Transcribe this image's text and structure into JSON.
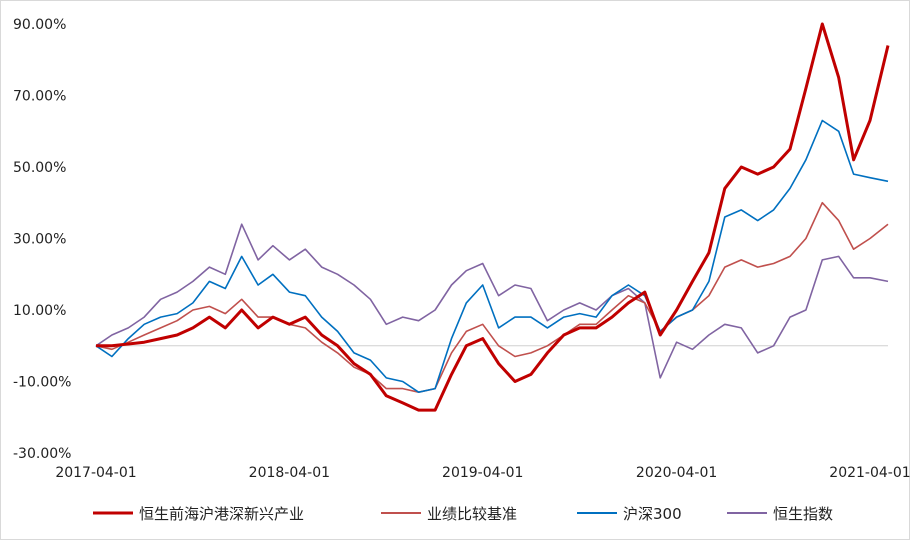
{
  "chart_data": {
    "type": "line",
    "title": "",
    "xlabel": "",
    "ylabel": "",
    "ylim": [
      -30,
      90
    ],
    "y_ticks": [
      "90.00%",
      "70.00%",
      "50.00%",
      "30.00%",
      "10.00%",
      "-10.00%",
      "-30.00%"
    ],
    "y_tick_values": [
      90,
      70,
      50,
      30,
      10,
      -10,
      -30
    ],
    "x_range": [
      "2017-04-01",
      "2021-05-05"
    ],
    "x_ticks": [
      "2017-04-01",
      "2018-04-01",
      "2019-04-01",
      "2020-04-01",
      "2021-04-01"
    ],
    "grid": false,
    "zero_line": true,
    "legend_position": "bottom",
    "series": [
      {
        "name": "恒生前海沪港深新兴产业",
        "color": "#c00000",
        "values": [
          [
            "2017-04-01",
            0
          ],
          [
            "2017-05-01",
            0
          ],
          [
            "2017-06-01",
            0.5
          ],
          [
            "2017-07-01",
            1
          ],
          [
            "2017-08-01",
            2
          ],
          [
            "2017-09-01",
            3
          ],
          [
            "2017-10-01",
            5
          ],
          [
            "2017-11-01",
            8
          ],
          [
            "2017-12-01",
            5
          ],
          [
            "2018-01-01",
            10
          ],
          [
            "2018-02-01",
            5
          ],
          [
            "2018-03-01",
            8
          ],
          [
            "2018-04-01",
            6
          ],
          [
            "2018-05-01",
            8
          ],
          [
            "2018-06-01",
            3
          ],
          [
            "2018-07-01",
            0
          ],
          [
            "2018-08-01",
            -5
          ],
          [
            "2018-09-01",
            -8
          ],
          [
            "2018-10-01",
            -14
          ],
          [
            "2018-11-01",
            -16
          ],
          [
            "2018-12-01",
            -18
          ],
          [
            "2019-01-01",
            -18
          ],
          [
            "2019-02-01",
            -8
          ],
          [
            "2019-03-01",
            0
          ],
          [
            "2019-04-01",
            2
          ],
          [
            "2019-05-01",
            -5
          ],
          [
            "2019-06-01",
            -10
          ],
          [
            "2019-07-01",
            -8
          ],
          [
            "2019-08-01",
            -2
          ],
          [
            "2019-09-01",
            3
          ],
          [
            "2019-10-01",
            5
          ],
          [
            "2019-11-01",
            5
          ],
          [
            "2019-12-01",
            8
          ],
          [
            "2020-01-01",
            12
          ],
          [
            "2020-02-01",
            15
          ],
          [
            "2020-03-01",
            3
          ],
          [
            "2020-04-01",
            10
          ],
          [
            "2020-05-01",
            18
          ],
          [
            "2020-06-01",
            26
          ],
          [
            "2020-07-01",
            44
          ],
          [
            "2020-08-01",
            50
          ],
          [
            "2020-09-01",
            48
          ],
          [
            "2020-10-01",
            50
          ],
          [
            "2020-11-01",
            55
          ],
          [
            "2020-12-01",
            72
          ],
          [
            "2021-01-01",
            90
          ],
          [
            "2021-02-01",
            75
          ],
          [
            "2021-03-01",
            52
          ],
          [
            "2021-04-01",
            63
          ],
          [
            "2021-05-05",
            84
          ]
        ]
      },
      {
        "name": "业绩比较基准",
        "color": "#c0504d",
        "values": [
          [
            "2017-04-01",
            0
          ],
          [
            "2017-05-01",
            -1
          ],
          [
            "2017-06-01",
            1
          ],
          [
            "2017-07-01",
            3
          ],
          [
            "2017-08-01",
            5
          ],
          [
            "2017-09-01",
            7
          ],
          [
            "2017-10-01",
            10
          ],
          [
            "2017-11-01",
            11
          ],
          [
            "2017-12-01",
            9
          ],
          [
            "2018-01-01",
            13
          ],
          [
            "2018-02-01",
            8
          ],
          [
            "2018-03-01",
            8
          ],
          [
            "2018-04-01",
            6
          ],
          [
            "2018-05-01",
            5
          ],
          [
            "2018-06-01",
            1
          ],
          [
            "2018-07-01",
            -2
          ],
          [
            "2018-08-01",
            -6
          ],
          [
            "2018-09-01",
            -8
          ],
          [
            "2018-10-01",
            -12
          ],
          [
            "2018-11-01",
            -12
          ],
          [
            "2018-12-01",
            -13
          ],
          [
            "2019-01-01",
            -12
          ],
          [
            "2019-02-01",
            -2
          ],
          [
            "2019-03-01",
            4
          ],
          [
            "2019-04-01",
            6
          ],
          [
            "2019-05-01",
            0
          ],
          [
            "2019-06-01",
            -3
          ],
          [
            "2019-07-01",
            -2
          ],
          [
            "2019-08-01",
            0
          ],
          [
            "2019-09-01",
            3
          ],
          [
            "2019-10-01",
            6
          ],
          [
            "2019-11-01",
            6
          ],
          [
            "2019-12-01",
            10
          ],
          [
            "2020-01-01",
            14
          ],
          [
            "2020-02-01",
            12
          ],
          [
            "2020-03-01",
            4
          ],
          [
            "2020-04-01",
            8
          ],
          [
            "2020-05-01",
            10
          ],
          [
            "2020-06-01",
            14
          ],
          [
            "2020-07-01",
            22
          ],
          [
            "2020-08-01",
            24
          ],
          [
            "2020-09-01",
            22
          ],
          [
            "2020-10-01",
            23
          ],
          [
            "2020-11-01",
            25
          ],
          [
            "2020-12-01",
            30
          ],
          [
            "2021-01-01",
            40
          ],
          [
            "2021-02-01",
            35
          ],
          [
            "2021-03-01",
            27
          ],
          [
            "2021-04-01",
            30
          ],
          [
            "2021-05-05",
            34
          ]
        ]
      },
      {
        "name": "沪深300",
        "color": "#0070c0",
        "values": [
          [
            "2017-04-01",
            0
          ],
          [
            "2017-05-01",
            -3
          ],
          [
            "2017-06-01",
            2
          ],
          [
            "2017-07-01",
            6
          ],
          [
            "2017-08-01",
            8
          ],
          [
            "2017-09-01",
            9
          ],
          [
            "2017-10-01",
            12
          ],
          [
            "2017-11-01",
            18
          ],
          [
            "2017-12-01",
            16
          ],
          [
            "2018-01-01",
            25
          ],
          [
            "2018-02-01",
            17
          ],
          [
            "2018-03-01",
            20
          ],
          [
            "2018-04-01",
            15
          ],
          [
            "2018-05-01",
            14
          ],
          [
            "2018-06-01",
            8
          ],
          [
            "2018-07-01",
            4
          ],
          [
            "2018-08-01",
            -2
          ],
          [
            "2018-09-01",
            -4
          ],
          [
            "2018-10-01",
            -9
          ],
          [
            "2018-11-01",
            -10
          ],
          [
            "2018-12-01",
            -13
          ],
          [
            "2019-01-01",
            -12
          ],
          [
            "2019-02-01",
            2
          ],
          [
            "2019-03-01",
            12
          ],
          [
            "2019-04-01",
            17
          ],
          [
            "2019-05-01",
            5
          ],
          [
            "2019-06-01",
            8
          ],
          [
            "2019-07-01",
            8
          ],
          [
            "2019-08-01",
            5
          ],
          [
            "2019-09-01",
            8
          ],
          [
            "2019-10-01",
            9
          ],
          [
            "2019-11-01",
            8
          ],
          [
            "2019-12-01",
            14
          ],
          [
            "2020-01-01",
            17
          ],
          [
            "2020-02-01",
            14
          ],
          [
            "2020-03-01",
            4
          ],
          [
            "2020-04-01",
            8
          ],
          [
            "2020-05-01",
            10
          ],
          [
            "2020-06-01",
            18
          ],
          [
            "2020-07-01",
            36
          ],
          [
            "2020-08-01",
            38
          ],
          [
            "2020-09-01",
            35
          ],
          [
            "2020-10-01",
            38
          ],
          [
            "2020-11-01",
            44
          ],
          [
            "2020-12-01",
            52
          ],
          [
            "2021-01-01",
            63
          ],
          [
            "2021-02-01",
            60
          ],
          [
            "2021-03-01",
            48
          ],
          [
            "2021-04-01",
            47
          ],
          [
            "2021-05-05",
            46
          ]
        ]
      },
      {
        "name": "恒生指数",
        "color": "#8064a2",
        "values": [
          [
            "2017-04-01",
            0
          ],
          [
            "2017-05-01",
            3
          ],
          [
            "2017-06-01",
            5
          ],
          [
            "2017-07-01",
            8
          ],
          [
            "2017-08-01",
            13
          ],
          [
            "2017-09-01",
            15
          ],
          [
            "2017-10-01",
            18
          ],
          [
            "2017-11-01",
            22
          ],
          [
            "2017-12-01",
            20
          ],
          [
            "2018-01-01",
            34
          ],
          [
            "2018-02-01",
            24
          ],
          [
            "2018-03-01",
            28
          ],
          [
            "2018-04-01",
            24
          ],
          [
            "2018-05-01",
            27
          ],
          [
            "2018-06-01",
            22
          ],
          [
            "2018-07-01",
            20
          ],
          [
            "2018-08-01",
            17
          ],
          [
            "2018-09-01",
            13
          ],
          [
            "2018-10-01",
            6
          ],
          [
            "2018-11-01",
            8
          ],
          [
            "2018-12-01",
            7
          ],
          [
            "2019-01-01",
            10
          ],
          [
            "2019-02-01",
            17
          ],
          [
            "2019-03-01",
            21
          ],
          [
            "2019-04-01",
            23
          ],
          [
            "2019-05-01",
            14
          ],
          [
            "2019-06-01",
            17
          ],
          [
            "2019-07-01",
            16
          ],
          [
            "2019-08-01",
            7
          ],
          [
            "2019-09-01",
            10
          ],
          [
            "2019-10-01",
            12
          ],
          [
            "2019-11-01",
            10
          ],
          [
            "2019-12-01",
            14
          ],
          [
            "2020-01-01",
            16
          ],
          [
            "2020-02-01",
            12
          ],
          [
            "2020-03-01",
            -9
          ],
          [
            "2020-04-01",
            1
          ],
          [
            "2020-05-01",
            -1
          ],
          [
            "2020-06-01",
            3
          ],
          [
            "2020-07-01",
            6
          ],
          [
            "2020-08-01",
            5
          ],
          [
            "2020-09-01",
            -2
          ],
          [
            "2020-10-01",
            0
          ],
          [
            "2020-11-01",
            8
          ],
          [
            "2020-12-01",
            10
          ],
          [
            "2021-01-01",
            24
          ],
          [
            "2021-02-01",
            25
          ],
          [
            "2021-03-01",
            19
          ],
          [
            "2021-04-01",
            19
          ],
          [
            "2021-05-05",
            18
          ]
        ]
      }
    ]
  }
}
